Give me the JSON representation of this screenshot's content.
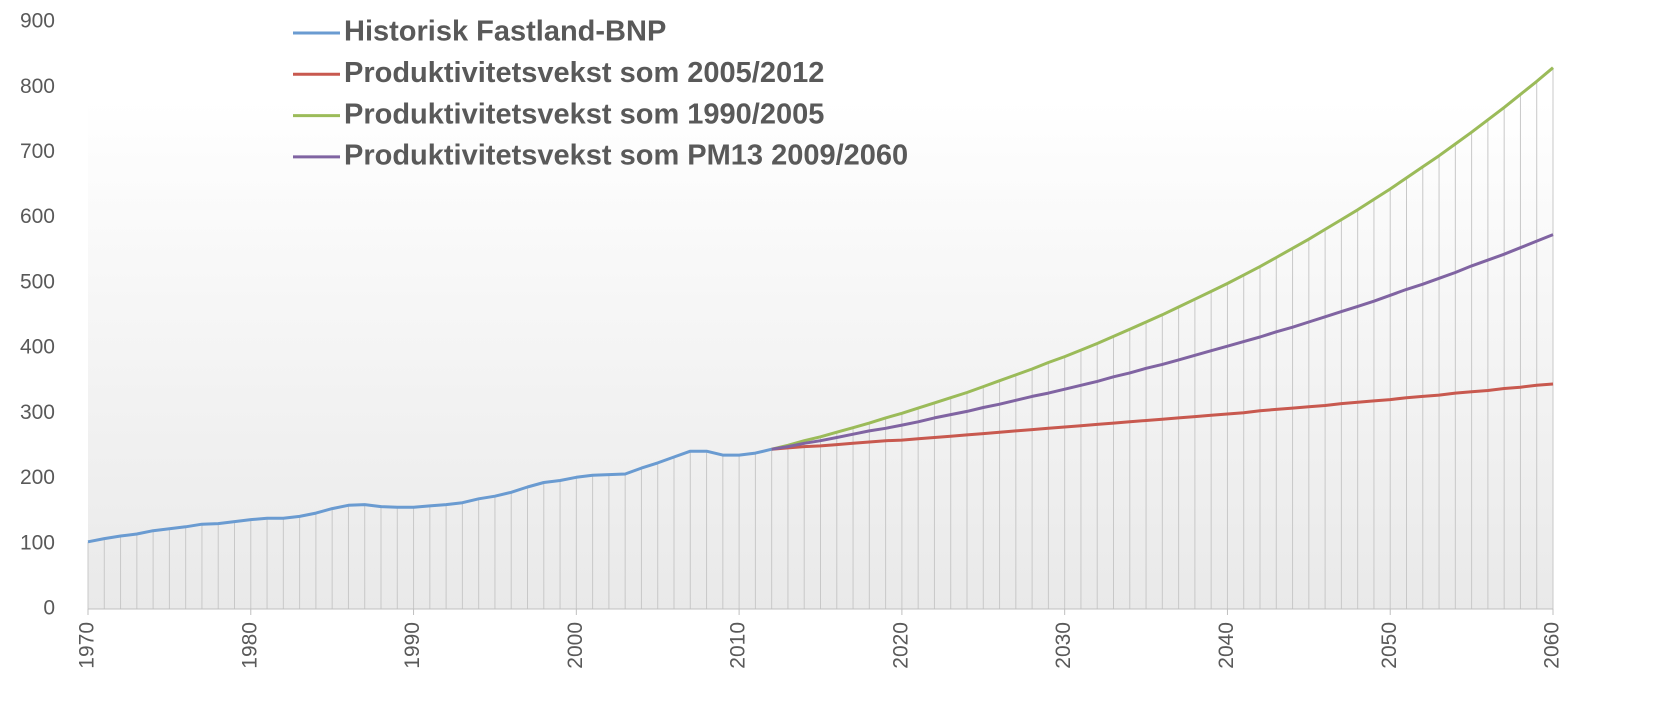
{
  "chart_data": {
    "type": "line",
    "x": [
      1970,
      1971,
      1972,
      1973,
      1974,
      1975,
      1976,
      1977,
      1978,
      1979,
      1980,
      1981,
      1982,
      1983,
      1984,
      1985,
      1986,
      1987,
      1988,
      1989,
      1990,
      1991,
      1992,
      1993,
      1994,
      1995,
      1996,
      1997,
      1998,
      1999,
      2000,
      2001,
      2002,
      2003,
      2004,
      2005,
      2006,
      2007,
      2008,
      2009,
      2010,
      2011,
      2012,
      2013,
      2014,
      2015,
      2016,
      2017,
      2018,
      2019,
      2020,
      2021,
      2022,
      2023,
      2024,
      2025,
      2026,
      2027,
      2028,
      2029,
      2030,
      2031,
      2032,
      2033,
      2034,
      2035,
      2036,
      2037,
      2038,
      2039,
      2040,
      2041,
      2042,
      2043,
      2044,
      2045,
      2046,
      2047,
      2048,
      2049,
      2050,
      2051,
      2052,
      2053,
      2054,
      2055,
      2056,
      2057,
      2058,
      2059,
      2060
    ],
    "series": [
      {
        "name": "Historisk Fastland-BNP",
        "color": "#6a9bd1",
        "values": [
          103,
          108,
          112,
          115,
          120,
          123,
          126,
          130,
          131,
          134,
          137,
          139,
          139,
          142,
          147,
          154,
          159,
          160,
          157,
          156,
          156,
          158,
          160,
          163,
          169,
          173,
          179,
          187,
          194,
          197,
          202,
          205,
          206,
          207,
          216,
          224,
          233,
          242,
          242,
          236,
          236,
          239,
          245,
          null,
          null,
          null,
          null,
          null,
          null,
          null,
          null,
          null,
          null,
          null,
          null,
          null,
          null,
          null,
          null,
          null,
          null,
          null,
          null,
          null,
          null,
          null,
          null,
          null,
          null,
          null,
          null,
          null,
          null,
          null,
          null,
          null,
          null,
          null,
          null,
          null,
          null,
          null,
          null,
          null,
          null,
          null,
          null,
          null,
          null,
          null,
          null
        ]
      },
      {
        "name": "Produktivitetsvekst som 2005/2012",
        "color": "#c8594f",
        "values": [
          null,
          null,
          null,
          null,
          null,
          null,
          null,
          null,
          null,
          null,
          null,
          null,
          null,
          null,
          null,
          null,
          null,
          null,
          null,
          null,
          null,
          null,
          null,
          null,
          null,
          null,
          null,
          null,
          null,
          null,
          null,
          null,
          null,
          null,
          null,
          null,
          null,
          null,
          null,
          null,
          null,
          null,
          245,
          247,
          249,
          250,
          252,
          254,
          256,
          258,
          259,
          261,
          263,
          265,
          267,
          269,
          271,
          273,
          275,
          277,
          279,
          281,
          283,
          285,
          287,
          289,
          291,
          293,
          295,
          297,
          299,
          301,
          304,
          306,
          308,
          310,
          312,
          315,
          317,
          319,
          321,
          324,
          326,
          328,
          331,
          333,
          335,
          338,
          340,
          343,
          345
        ]
      },
      {
        "name": "Produktivitetsvekst som 1990/2005",
        "color": "#9bbb59",
        "values": [
          null,
          null,
          null,
          null,
          null,
          null,
          null,
          null,
          null,
          null,
          null,
          null,
          null,
          null,
          null,
          null,
          null,
          null,
          null,
          null,
          null,
          null,
          null,
          null,
          null,
          null,
          null,
          null,
          null,
          null,
          null,
          null,
          null,
          null,
          null,
          null,
          null,
          null,
          null,
          null,
          null,
          null,
          245,
          251,
          258,
          264,
          271,
          278,
          285,
          293,
          300,
          308,
          316,
          324,
          332,
          341,
          350,
          359,
          368,
          378,
          387,
          397,
          407,
          418,
          429,
          440,
          451,
          463,
          475,
          487,
          499,
          512,
          525,
          539,
          553,
          567,
          582,
          597,
          612,
          628,
          644,
          661,
          678,
          695,
          713,
          731,
          750,
          769,
          789,
          809,
          830
        ]
      },
      {
        "name": "Produktivitetsvekst som PM13 2009/2060",
        "color": "#8064a2",
        "values": [
          null,
          null,
          null,
          null,
          null,
          null,
          null,
          null,
          null,
          null,
          null,
          null,
          null,
          null,
          null,
          null,
          null,
          null,
          null,
          null,
          null,
          null,
          null,
          null,
          null,
          null,
          null,
          null,
          null,
          null,
          null,
          null,
          null,
          null,
          null,
          null,
          null,
          null,
          null,
          null,
          null,
          null,
          245,
          249,
          254,
          258,
          263,
          268,
          273,
          277,
          282,
          287,
          293,
          298,
          303,
          309,
          314,
          320,
          326,
          331,
          337,
          343,
          349,
          356,
          362,
          369,
          375,
          382,
          389,
          396,
          403,
          410,
          417,
          425,
          432,
          440,
          448,
          456,
          464,
          472,
          481,
          490,
          498,
          507,
          516,
          526,
          535,
          544,
          554,
          564,
          574
        ]
      }
    ],
    "xlim": [
      1970,
      2060
    ],
    "xticks": [
      1970,
      1980,
      1990,
      2000,
      2010,
      2020,
      2030,
      2040,
      2050,
      2060
    ],
    "ylim": [
      0,
      900
    ],
    "yticks": [
      0,
      100,
      200,
      300,
      400,
      500,
      600,
      700,
      800,
      900
    ],
    "drop_lines": true,
    "legend": "top-left"
  }
}
